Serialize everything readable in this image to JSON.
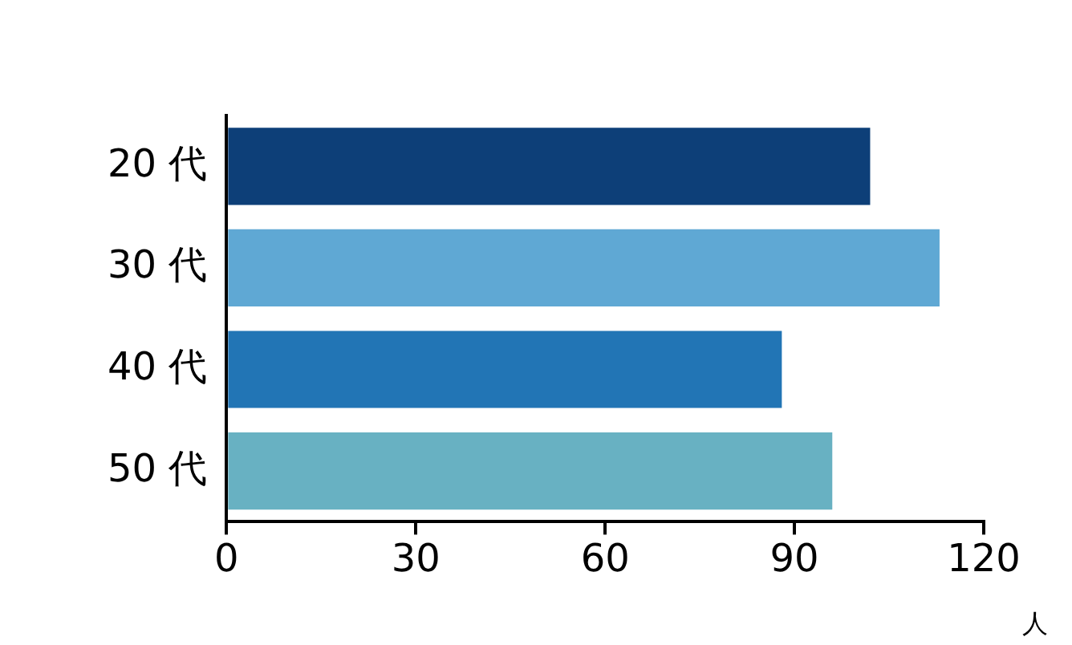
{
  "chart_data": {
    "type": "bar",
    "orientation": "horizontal",
    "categories": [
      "20 代",
      "30 代",
      "40 代",
      "50 代"
    ],
    "values": [
      102,
      113,
      88,
      96
    ],
    "colors": [
      "#0d3f78",
      "#5fa8d4",
      "#2275b5",
      "#68b1c2"
    ],
    "xlim": [
      0,
      120
    ],
    "xticks": [
      0,
      30,
      60,
      90,
      120
    ],
    "xlabel": "人",
    "grid": false,
    "legend": false
  }
}
